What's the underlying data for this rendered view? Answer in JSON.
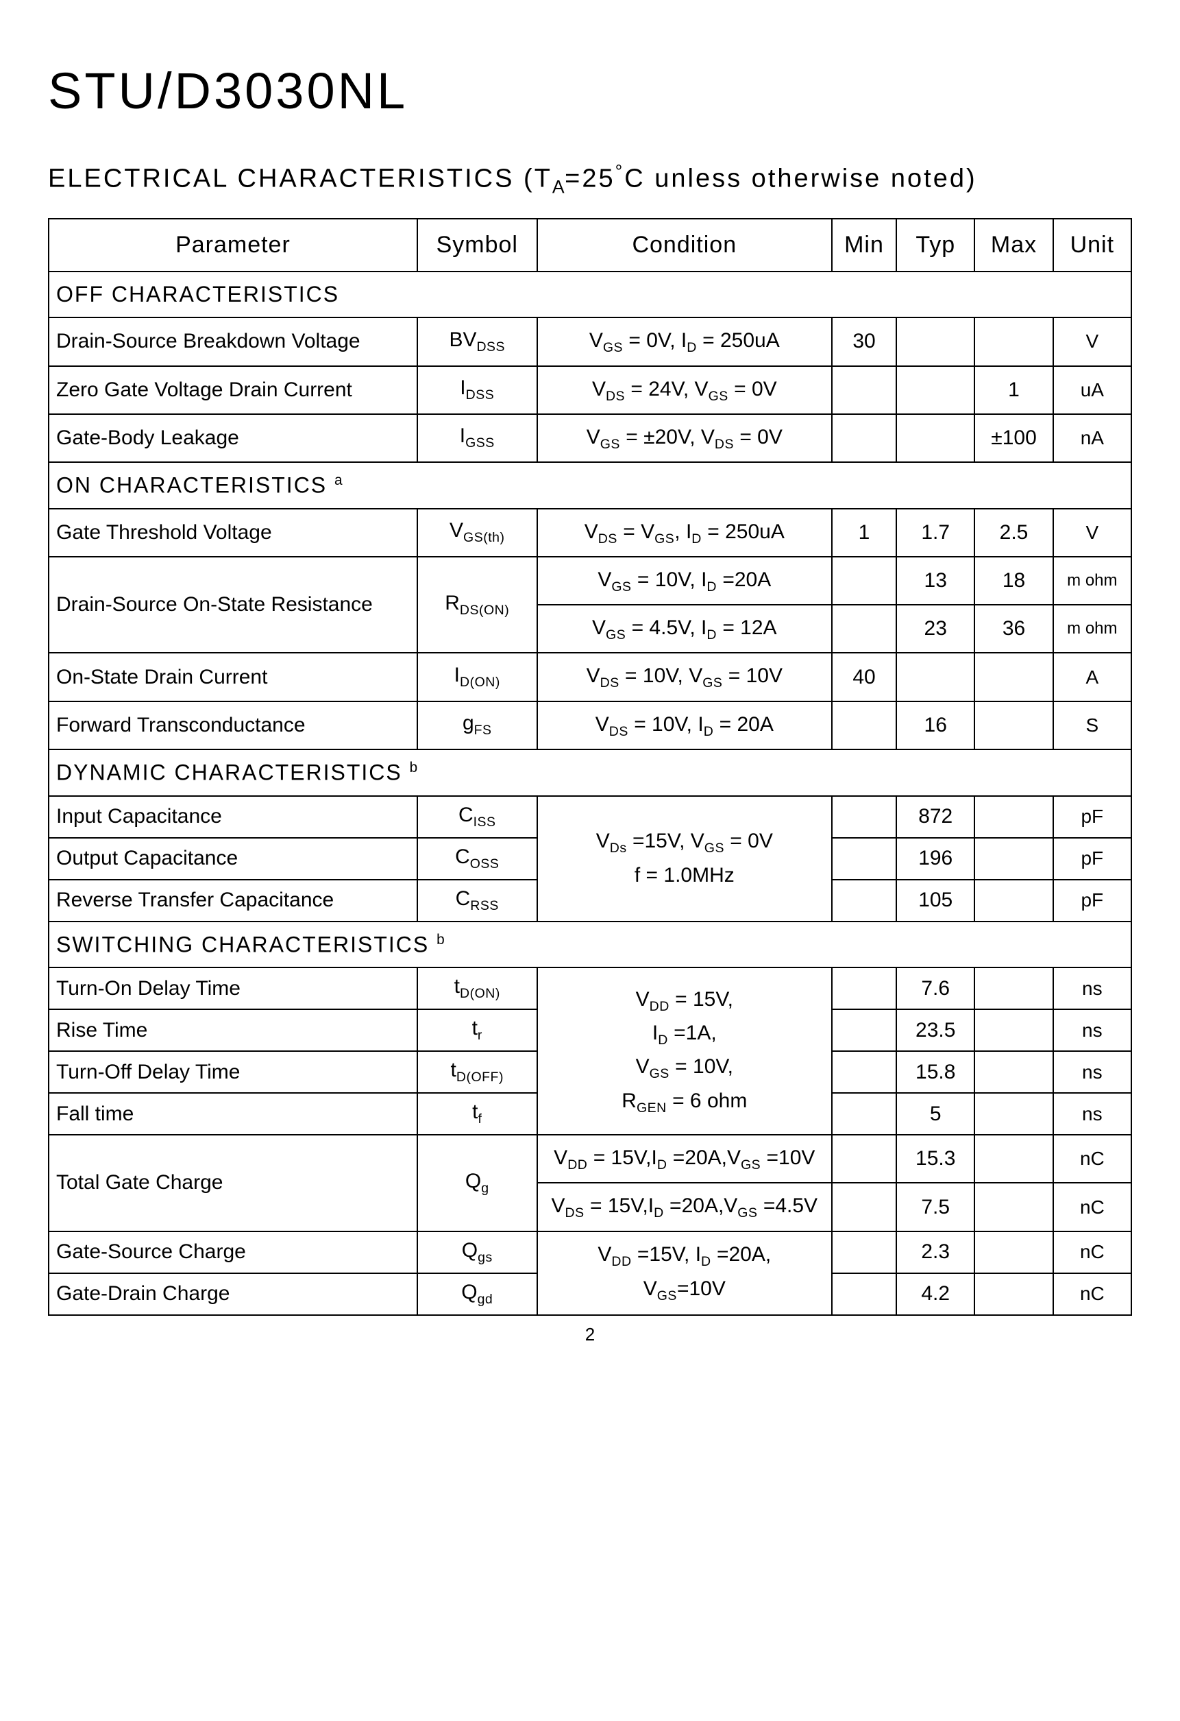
{
  "title": "STU/D3030NL",
  "subtitle_prefix": "ELECTRICAL CHARACTERISTICS",
  "subtitle_cond_open": "  (T",
  "subtitle_cond_sub": "A",
  "subtitle_cond_eq": "=25",
  "subtitle_cond_deg": "°",
  "subtitle_cond_tail": "C  unless otherwise noted)",
  "headers": {
    "parameter": "Parameter",
    "symbol": "Symbol",
    "condition": "Condition",
    "min": "Min",
    "typ": "Typ",
    "max": "Max",
    "unit": "Unit"
  },
  "section_off": "OFF CHARACTERISTICS",
  "off_rows": {
    "bvdss": {
      "param": "Drain-Source Breakdown Voltage",
      "sym_pre": "BV",
      "sym_sub": "DSS",
      "cond_a_pre": "V",
      "cond_a_sub": "GS",
      "cond_a_mid": " = 0V, I",
      "cond_a_sub2": "D",
      "cond_a_tail": " = 250uA",
      "min": "30",
      "typ": "",
      "max": "",
      "unit": "V"
    },
    "idss": {
      "param": "Zero Gate Voltage Drain Current",
      "sym_pre": "I",
      "sym_sub": "DSS",
      "cond_a_pre": "V",
      "cond_a_sub": "DS",
      "cond_a_mid": " = 24V, V",
      "cond_a_sub2": "GS",
      "cond_a_tail": " = 0V",
      "min": "",
      "typ": "",
      "max": "1",
      "unit": "uA"
    },
    "igss": {
      "param": "Gate-Body Leakage",
      "sym_pre": "I",
      "sym_sub": "GSS",
      "cond_a_pre": "V",
      "cond_a_sub": "GS",
      "cond_a_mid": " = ±20V, V",
      "cond_a_sub2": "DS",
      "cond_a_tail": " = 0V",
      "min": "",
      "typ": "",
      "max": "±100",
      "unit": "nA"
    }
  },
  "section_on": "ON CHARACTERISTICS",
  "section_on_note": "a",
  "on_rows": {
    "vgsth": {
      "param": "Gate Threshold Voltage",
      "sym_pre": "V",
      "sym_sub": "GS(th)",
      "cond_a_pre": "V",
      "cond_a_sub": "DS",
      "cond_a_mid": " = V",
      "cond_a_sub2": "GS",
      "cond_a_mid2": ", I",
      "cond_a_sub3": "D",
      "cond_a_tail": " = 250uA",
      "min": "1",
      "typ": "1.7",
      "max": "2.5",
      "unit": "V"
    },
    "rdson": {
      "param": "Drain-Source On-State Resistance",
      "sym_pre": "R",
      "sym_sub": "DS(ON)",
      "row1": {
        "cond_pre": "V",
        "cond_sub": "GS",
        "cond_mid": " = 10V, I",
        "cond_sub2": "D",
        "cond_tail": " =20A",
        "min": "",
        "typ": "13",
        "max": "18",
        "unit": "m ohm"
      },
      "row2": {
        "cond_pre": "V",
        "cond_sub": "GS",
        "cond_mid": " = 4.5V, I",
        "cond_sub2": "D",
        "cond_tail": " = 12A",
        "min": "",
        "typ": "23",
        "max": "36",
        "unit": "m ohm"
      }
    },
    "idon": {
      "param": "On-State Drain Current",
      "sym_pre": "I",
      "sym_sub": "D(ON)",
      "cond_a_pre": "V",
      "cond_a_sub": "DS",
      "cond_a_mid": " = 10V, V",
      "cond_a_sub2": "GS",
      "cond_a_tail": " = 10V",
      "min": "40",
      "typ": "",
      "max": "",
      "unit": "A"
    },
    "gfs": {
      "param": "Forward Transconductance",
      "sym_pre": "g",
      "sym_sub": "FS",
      "cond_a_pre": "V",
      "cond_a_sub": "DS",
      "cond_a_mid": " = 10V, I",
      "cond_a_sub2": "D",
      "cond_a_tail": " = 20A",
      "min": "",
      "typ": "16",
      "max": "",
      "unit": "S"
    }
  },
  "section_dyn": "DYNAMIC CHARACTERISTICS",
  "section_dyn_note": "b",
  "dyn_shared_cond": {
    "l1_pre": "V",
    "l1_sub": "Ds",
    "l1_mid": " =15V, V",
    "l1_sub2": "GS",
    "l1_tail": " = 0V",
    "l2": "f = 1.0MHz"
  },
  "dyn_rows": {
    "ciss": {
      "param": "Input Capacitance",
      "sym_pre": "C",
      "sym_sub": "ISS",
      "min": "",
      "typ": "872",
      "max": "",
      "unit": "pF"
    },
    "coss": {
      "param": "Output Capacitance",
      "sym_pre": "C",
      "sym_sub": "OSS",
      "min": "",
      "typ": "196",
      "max": "",
      "unit": "pF"
    },
    "crss": {
      "param": "Reverse Transfer Capacitance",
      "sym_pre": "C",
      "sym_sub": "RSS",
      "min": "",
      "typ": "105",
      "max": "",
      "unit": "pF"
    }
  },
  "section_sw": "SWITCHING CHARACTERISTICS",
  "section_sw_note": "b",
  "sw_shared_cond": {
    "l1_pre": "V",
    "l1_sub": "DD",
    "l1_tail": " = 15V,",
    "l2_pre": "I",
    "l2_sub": "D",
    "l2_tail": " =1A,",
    "l3_pre": "V",
    "l3_sub": "GS",
    "l3_tail": " = 10V,",
    "l4_pre": "R",
    "l4_sub": "GEN",
    "l4_tail": " = 6 ohm"
  },
  "sw_rows": {
    "tdon": {
      "param": "Turn-On Delay Time",
      "sym_pre": "t",
      "sym_sub": "D(ON)",
      "min": "",
      "typ": "7.6",
      "max": "",
      "unit": "ns"
    },
    "tr": {
      "param": "Rise Time",
      "sym_pre": "t",
      "sym_sub": "r",
      "min": "",
      "typ": "23.5",
      "max": "",
      "unit": "ns"
    },
    "tdoff": {
      "param": "Turn-Off Delay Time",
      "sym_pre": "t",
      "sym_sub": "D(OFF)",
      "min": "",
      "typ": "15.8",
      "max": "",
      "unit": "ns"
    },
    "tf": {
      "param": "Fall time",
      "sym_pre": "t",
      "sym_sub": "f",
      "min": "",
      "typ": "5",
      "max": "",
      "unit": "ns"
    }
  },
  "qg": {
    "param": "Total Gate Charge",
    "sym_pre": "Q",
    "sym_sub": "g",
    "row1": {
      "cond_pre": "V",
      "cond_sub": "DD",
      "cond_mid": " = 15V,I",
      "cond_sub2": "D",
      "cond_mid2": " =20A,V",
      "cond_sub3": "GS",
      "cond_tail": " =10V",
      "min": "",
      "typ": "15.3",
      "max": "",
      "unit": "nC"
    },
    "row2": {
      "cond_pre": "V",
      "cond_sub": "DS",
      "cond_mid": " = 15V,I",
      "cond_sub2": "D",
      "cond_mid2": " =20A,V",
      "cond_sub3": "GS",
      "cond_tail": " =4.5V",
      "min": "",
      "typ": "7.5",
      "max": "",
      "unit": "nC"
    }
  },
  "qgs_qgd_cond": {
    "l1_pre": "V",
    "l1_sub": "DD",
    "l1_mid": " =15V, I",
    "l1_sub2": "D",
    "l1_tail": " =20A,",
    "l2_pre": "V",
    "l2_sub": "GS",
    "l2_tail": "=10V"
  },
  "qgs": {
    "param": "Gate-Source Charge",
    "sym_pre": "Q",
    "sym_sub": "gs",
    "min": "",
    "typ": "2.3",
    "max": "",
    "unit": "nC"
  },
  "qgd": {
    "param": "Gate-Drain Charge",
    "sym_pre": "Q",
    "sym_sub": "gd",
    "min": "",
    "typ": "4.2",
    "max": "",
    "unit": "nC"
  },
  "page_num": "2"
}
